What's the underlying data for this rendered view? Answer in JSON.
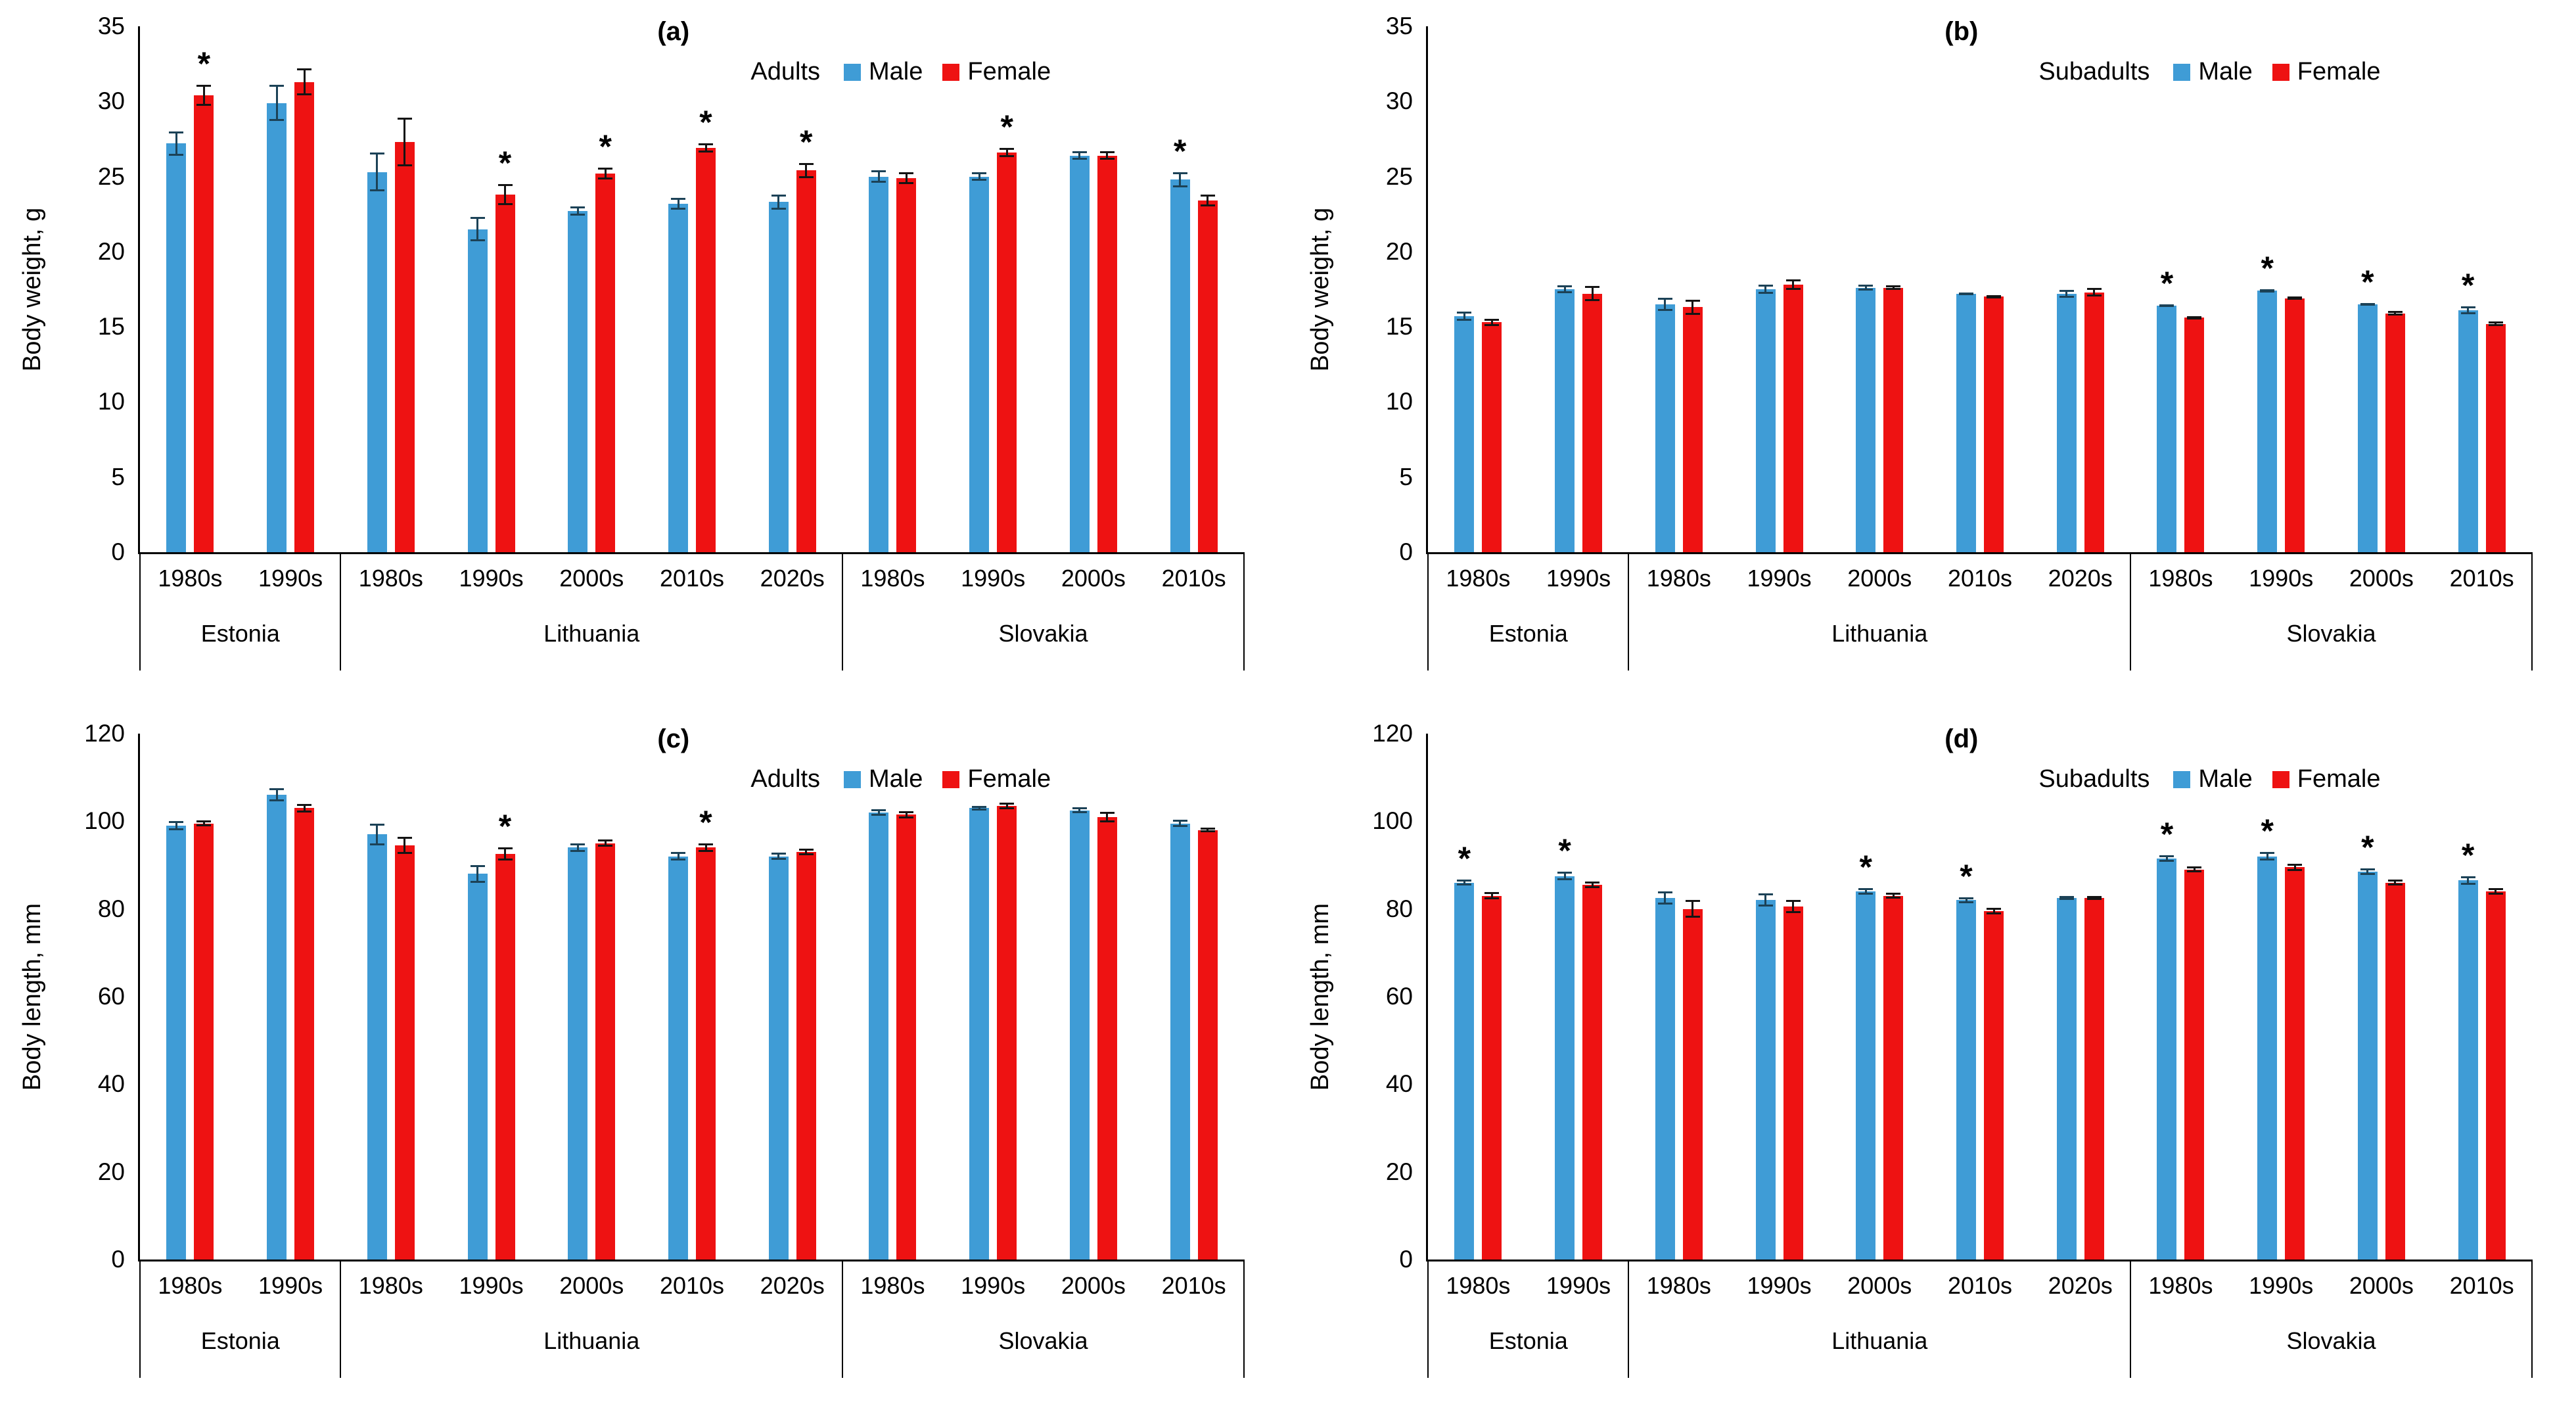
{
  "colors": {
    "male": "#3F9CD6",
    "female": "#EE1212",
    "male_err": "#1C4257",
    "female_err": "#141414",
    "axis": "#000000"
  },
  "chart_data": [
    {
      "id": "a",
      "type": "bar",
      "letter": "(a)",
      "cohort": "Adults",
      "ylabel": "Body weight, g",
      "ymax": 35,
      "yticks": [
        0,
        5,
        10,
        15,
        20,
        25,
        30,
        35
      ],
      "legend": [
        "Male",
        "Female"
      ],
      "grid": false,
      "legend_position": "top-right",
      "groups": [
        {
          "country": "Estonia",
          "decades": [
            "1980s",
            "1990s"
          ],
          "male": [
            [
              27.2,
              0.8,
              0
            ],
            [
              29.9,
              1.2,
              0
            ]
          ],
          "female": [
            [
              30.4,
              0.7,
              1
            ],
            [
              31.3,
              0.9,
              0
            ]
          ]
        },
        {
          "country": "Lithuania",
          "decades": [
            "1980s",
            "1990s",
            "2000s",
            "2010s",
            "2020s"
          ],
          "male": [
            [
              25.3,
              1.3,
              0
            ],
            [
              21.5,
              0.8,
              0
            ],
            [
              22.7,
              0.3,
              0
            ],
            [
              23.2,
              0.4,
              0
            ],
            [
              23.3,
              0.5,
              0
            ]
          ],
          "female": [
            [
              27.3,
              1.6,
              0
            ],
            [
              23.8,
              0.7,
              1
            ],
            [
              25.2,
              0.4,
              1
            ],
            [
              26.9,
              0.3,
              1
            ],
            [
              25.4,
              0.5,
              1
            ]
          ]
        },
        {
          "country": "Slovakia",
          "decades": [
            "1980s",
            "1990s",
            "2000s",
            "2010s"
          ],
          "male": [
            [
              25.0,
              0.4,
              0
            ],
            [
              25.0,
              0.3,
              0
            ],
            [
              26.4,
              0.3,
              0
            ],
            [
              24.8,
              0.5,
              1
            ]
          ],
          "female": [
            [
              24.9,
              0.4,
              0
            ],
            [
              26.6,
              0.3,
              1
            ],
            [
              26.4,
              0.3,
              0
            ],
            [
              23.4,
              0.4,
              0
            ]
          ]
        }
      ]
    },
    {
      "id": "b",
      "type": "bar",
      "letter": "(b)",
      "cohort": "Subadults",
      "ylabel": "Body weight, g",
      "ymax": 35,
      "yticks": [
        0,
        5,
        10,
        15,
        20,
        25,
        30,
        35
      ],
      "legend": [
        "Male",
        "Female"
      ],
      "grid": false,
      "legend_position": "top-right",
      "groups": [
        {
          "country": "Estonia",
          "decades": [
            "1980s",
            "1990s"
          ],
          "male": [
            [
              15.7,
              0.3,
              0
            ],
            [
              17.5,
              0.25,
              0
            ]
          ],
          "female": [
            [
              15.3,
              0.25,
              0
            ],
            [
              17.2,
              0.5,
              0
            ]
          ]
        },
        {
          "country": "Lithuania",
          "decades": [
            "1980s",
            "1990s",
            "2000s",
            "2010s",
            "2020s"
          ],
          "male": [
            [
              16.5,
              0.45,
              0
            ],
            [
              17.5,
              0.3,
              0
            ],
            [
              17.6,
              0.2,
              0
            ],
            [
              17.2,
              0.1,
              0
            ],
            [
              17.2,
              0.25,
              0
            ]
          ],
          "female": [
            [
              16.3,
              0.5,
              0
            ],
            [
              17.8,
              0.35,
              0
            ],
            [
              17.6,
              0.15,
              0
            ],
            [
              17.0,
              0.12,
              0
            ],
            [
              17.3,
              0.3,
              0
            ]
          ]
        },
        {
          "country": "Slovakia",
          "decades": [
            "1980s",
            "1990s",
            "2000s",
            "2010s"
          ],
          "male": [
            [
              16.4,
              0.1,
              1
            ],
            [
              17.4,
              0.12,
              1
            ],
            [
              16.5,
              0.1,
              1
            ],
            [
              16.1,
              0.25,
              1
            ]
          ],
          "female": [
            [
              15.6,
              0.1,
              0
            ],
            [
              16.9,
              0.1,
              0
            ],
            [
              15.9,
              0.15,
              0
            ],
            [
              15.2,
              0.15,
              0
            ]
          ]
        }
      ]
    },
    {
      "id": "c",
      "type": "bar",
      "letter": "(c)",
      "cohort": "Adults",
      "ylabel": "Body length, mm",
      "ymax": 120,
      "yticks": [
        0,
        20,
        40,
        60,
        80,
        100,
        120
      ],
      "legend": [
        "Male",
        "Female"
      ],
      "grid": false,
      "legend_position": "top-right",
      "groups": [
        {
          "country": "Estonia",
          "decades": [
            "1980s",
            "1990s"
          ],
          "male": [
            [
              99,
              1.0,
              0
            ],
            [
              106,
              1.5,
              0
            ]
          ],
          "female": [
            [
              99.5,
              0.7,
              0
            ],
            [
              103,
              1.0,
              0
            ]
          ]
        },
        {
          "country": "Lithuania",
          "decades": [
            "1980s",
            "1990s",
            "2000s",
            "2010s",
            "2020s"
          ],
          "male": [
            [
              97,
              2.5,
              0
            ],
            [
              88,
              2.0,
              0
            ],
            [
              94,
              1.0,
              0
            ],
            [
              92,
              1.0,
              0
            ],
            [
              92,
              0.8,
              0
            ]
          ],
          "female": [
            [
              94.5,
              2.0,
              0
            ],
            [
              92.5,
              1.5,
              1
            ],
            [
              95,
              0.8,
              0
            ],
            [
              94,
              1.0,
              1
            ],
            [
              93,
              0.8,
              0
            ]
          ]
        },
        {
          "country": "Slovakia",
          "decades": [
            "1980s",
            "1990s",
            "2000s",
            "2010s"
          ],
          "male": [
            [
              102,
              0.8,
              0
            ],
            [
              103,
              0.5,
              0
            ],
            [
              102.5,
              0.7,
              0
            ],
            [
              99.5,
              0.8,
              0
            ]
          ],
          "female": [
            [
              101.5,
              0.8,
              0
            ],
            [
              103.5,
              0.8,
              0
            ],
            [
              101,
              1.2,
              0
            ],
            [
              98,
              0.5,
              0
            ]
          ]
        }
      ]
    },
    {
      "id": "d",
      "type": "bar",
      "letter": "(d)",
      "cohort": "Subadults",
      "ylabel": "Body length, mm",
      "ymax": 120,
      "yticks": [
        0,
        20,
        40,
        60,
        80,
        100,
        120
      ],
      "legend": [
        "Male",
        "Female"
      ],
      "grid": false,
      "legend_position": "top-right",
      "groups": [
        {
          "country": "Estonia",
          "decades": [
            "1980s",
            "1990s"
          ],
          "male": [
            [
              86,
              0.7,
              1
            ],
            [
              87.5,
              1.0,
              1
            ]
          ],
          "female": [
            [
              83,
              0.8,
              0
            ],
            [
              85.5,
              0.8,
              0
            ]
          ]
        },
        {
          "country": "Lithuania",
          "decades": [
            "1980s",
            "1990s",
            "2000s",
            "2010s",
            "2020s"
          ],
          "male": [
            [
              82.5,
              1.5,
              0
            ],
            [
              82,
              1.5,
              0
            ],
            [
              84,
              0.8,
              1
            ],
            [
              82,
              0.7,
              1
            ],
            [
              82.5,
              0.5,
              0
            ]
          ],
          "female": [
            [
              80,
              2.0,
              0
            ],
            [
              80.5,
              1.5,
              0
            ],
            [
              83,
              0.7,
              0
            ],
            [
              79.5,
              0.8,
              0
            ],
            [
              82.5,
              0.5,
              0
            ]
          ]
        },
        {
          "country": "Slovakia",
          "decades": [
            "1980s",
            "1990s",
            "2000s",
            "2010s"
          ],
          "male": [
            [
              91.5,
              0.8,
              1
            ],
            [
              92,
              1.0,
              1
            ],
            [
              88.5,
              0.8,
              1
            ],
            [
              86.5,
              1.0,
              1
            ]
          ],
          "female": [
            [
              89,
              0.7,
              0
            ],
            [
              89.5,
              0.8,
              0
            ],
            [
              86,
              0.7,
              0
            ],
            [
              84,
              0.8,
              0
            ]
          ]
        }
      ]
    }
  ]
}
